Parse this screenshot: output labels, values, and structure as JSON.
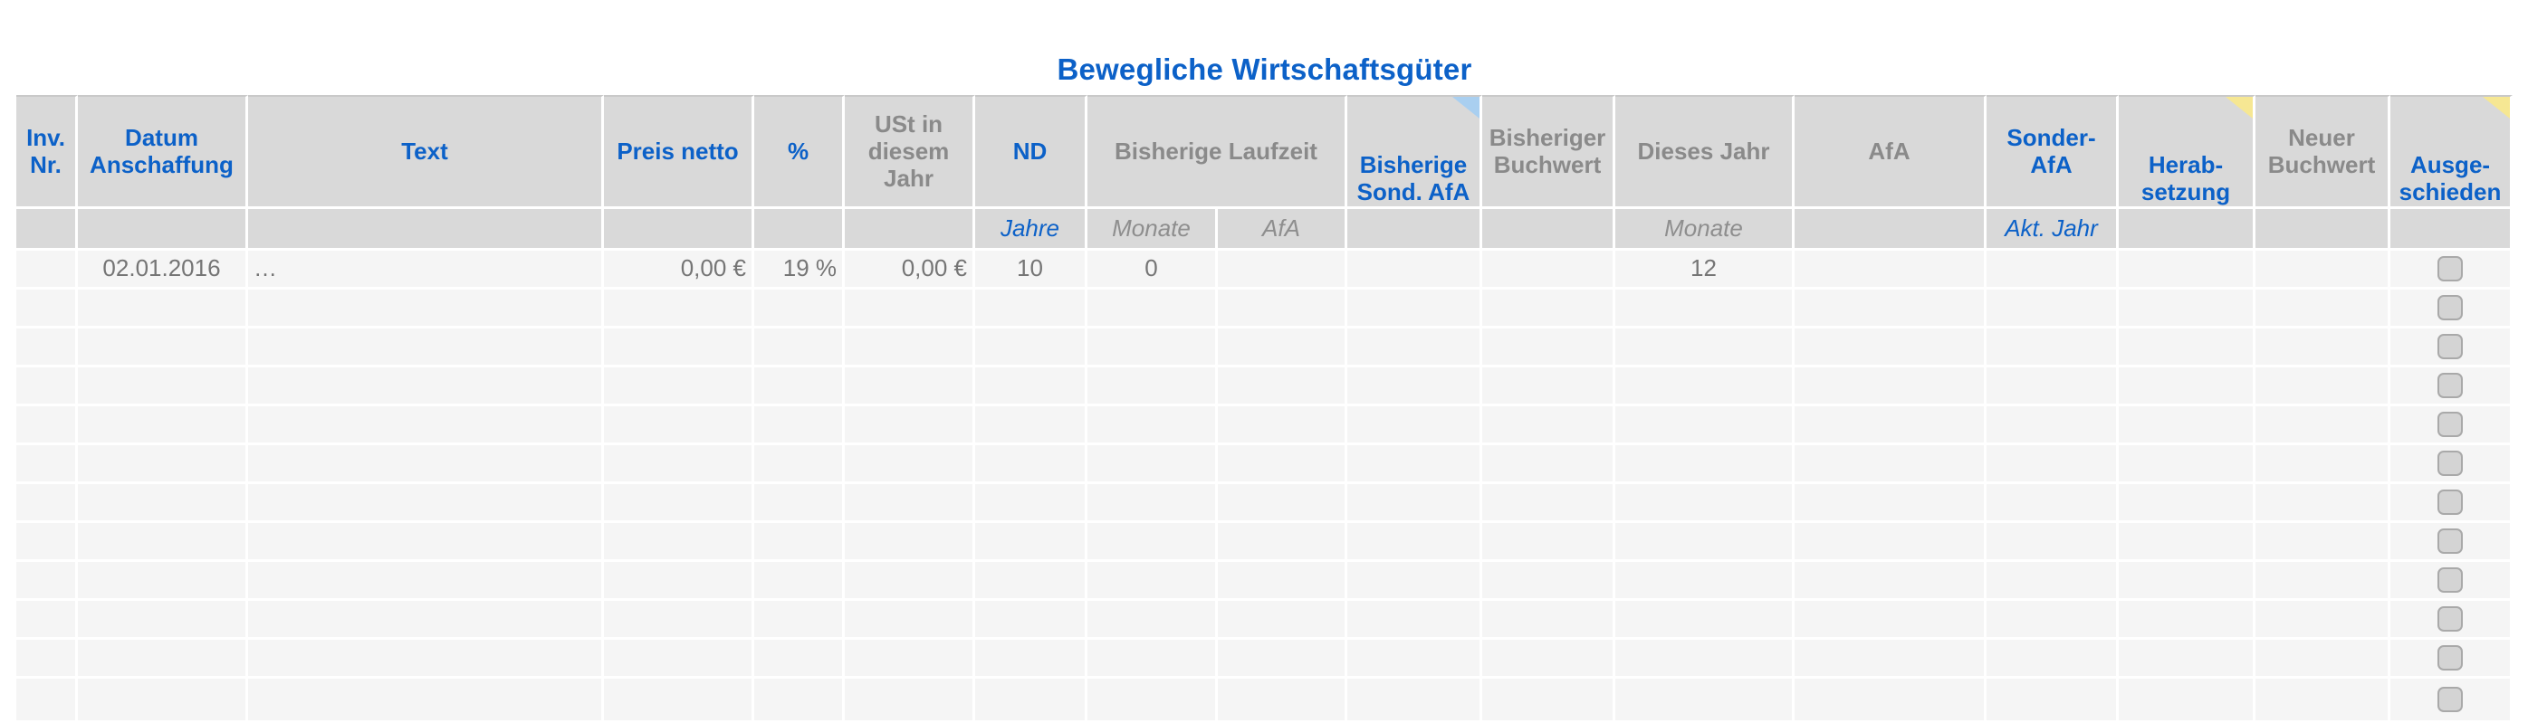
{
  "title": "Bewegliche Wirtschaftsgüter",
  "colors": {
    "accent_blue": "#0c61c8",
    "header_gray_text": "#8a8a8a",
    "header_background": "#d9d9d9",
    "row_background": "#f5f5f5",
    "gridline": "#ffffff",
    "data_text": "#757575",
    "comment_flag_blue": "#a9cff0",
    "comment_flag_yellow": "#f6e793",
    "checkbox_fill": "#d4d4d4",
    "checkbox_border": "#a9a9a9"
  },
  "table": {
    "columns": [
      {
        "id": "inv_nr",
        "label": "Inv.\nNr.",
        "color": "blue"
      },
      {
        "id": "datum",
        "label": "Datum\nAnschaffung",
        "color": "blue"
      },
      {
        "id": "text",
        "label": "Text",
        "color": "blue"
      },
      {
        "id": "preis_netto",
        "label": "Preis netto",
        "color": "blue"
      },
      {
        "id": "prozent",
        "label": "%",
        "color": "blue"
      },
      {
        "id": "ust",
        "label": "USt in\ndiesem\nJahr",
        "color": "gray"
      },
      {
        "id": "nd",
        "label": "ND",
        "color": "blue",
        "subheader": "Jahre",
        "subheader_color": "blue"
      },
      {
        "id": "bisherige_laufzeit",
        "label": "Bisherige Laufzeit",
        "color": "gray",
        "children": [
          {
            "id": "laufzeit_monate",
            "subheader": "Monate",
            "subheader_color": "gray"
          },
          {
            "id": "laufzeit_afa",
            "subheader": "AfA",
            "subheader_color": "gray"
          }
        ]
      },
      {
        "id": "bisherige_sond_afa",
        "label": "Bisherige\nSond. AfA",
        "color": "blue",
        "note_marker": "blue"
      },
      {
        "id": "bisheriger_buchwert",
        "label": "Bisheriger\nBuchwert",
        "color": "gray"
      },
      {
        "id": "dieses_jahr",
        "label": "Dieses Jahr",
        "color": "gray",
        "subheader": "Monate",
        "subheader_color": "gray"
      },
      {
        "id": "afa",
        "label": "AfA",
        "color": "gray"
      },
      {
        "id": "sonder_afa",
        "label": "Sonder-\nAfA",
        "color": "blue",
        "subheader": "Akt. Jahr",
        "subheader_color": "blue"
      },
      {
        "id": "herabsetzung",
        "label": "Herab-\nsetzung",
        "color": "blue",
        "note_marker": "yellow"
      },
      {
        "id": "neuer_buchwert",
        "label": "Neuer\nBuchwert",
        "color": "gray"
      },
      {
        "id": "ausgeschieden",
        "label": "Ausge-\nschieden",
        "color": "blue",
        "note_marker": "yellow"
      }
    ],
    "rows": [
      {
        "inv_nr": "",
        "datum": "02.01.2016",
        "text": "…",
        "preis_netto": "0,00 €",
        "prozent": "19 %",
        "ust": "0,00 €",
        "nd": "10",
        "laufzeit_monate": "0",
        "laufzeit_afa": "",
        "bisherige_sond_afa": "",
        "bisheriger_buchwert": "",
        "dieses_jahr": "12",
        "afa": "",
        "sonder_afa": "",
        "herabsetzung": "",
        "neuer_buchwert": "",
        "ausgeschieden_checked": false
      },
      {
        "inv_nr": "",
        "datum": "",
        "text": "",
        "preis_netto": "",
        "prozent": "",
        "ust": "",
        "nd": "",
        "laufzeit_monate": "",
        "laufzeit_afa": "",
        "bisherige_sond_afa": "",
        "bisheriger_buchwert": "",
        "dieses_jahr": "",
        "afa": "",
        "sonder_afa": "",
        "herabsetzung": "",
        "neuer_buchwert": "",
        "ausgeschieden_checked": false
      },
      {
        "inv_nr": "",
        "datum": "",
        "text": "",
        "preis_netto": "",
        "prozent": "",
        "ust": "",
        "nd": "",
        "laufzeit_monate": "",
        "laufzeit_afa": "",
        "bisherige_sond_afa": "",
        "bisheriger_buchwert": "",
        "dieses_jahr": "",
        "afa": "",
        "sonder_afa": "",
        "herabsetzung": "",
        "neuer_buchwert": "",
        "ausgeschieden_checked": false
      },
      {
        "inv_nr": "",
        "datum": "",
        "text": "",
        "preis_netto": "",
        "prozent": "",
        "ust": "",
        "nd": "",
        "laufzeit_monate": "",
        "laufzeit_afa": "",
        "bisherige_sond_afa": "",
        "bisheriger_buchwert": "",
        "dieses_jahr": "",
        "afa": "",
        "sonder_afa": "",
        "herabsetzung": "",
        "neuer_buchwert": "",
        "ausgeschieden_checked": false
      },
      {
        "inv_nr": "",
        "datum": "",
        "text": "",
        "preis_netto": "",
        "prozent": "",
        "ust": "",
        "nd": "",
        "laufzeit_monate": "",
        "laufzeit_afa": "",
        "bisherige_sond_afa": "",
        "bisheriger_buchwert": "",
        "dieses_jahr": "",
        "afa": "",
        "sonder_afa": "",
        "herabsetzung": "",
        "neuer_buchwert": "",
        "ausgeschieden_checked": false
      },
      {
        "inv_nr": "",
        "datum": "",
        "text": "",
        "preis_netto": "",
        "prozent": "",
        "ust": "",
        "nd": "",
        "laufzeit_monate": "",
        "laufzeit_afa": "",
        "bisherige_sond_afa": "",
        "bisheriger_buchwert": "",
        "dieses_jahr": "",
        "afa": "",
        "sonder_afa": "",
        "herabsetzung": "",
        "neuer_buchwert": "",
        "ausgeschieden_checked": false
      },
      {
        "inv_nr": "",
        "datum": "",
        "text": "",
        "preis_netto": "",
        "prozent": "",
        "ust": "",
        "nd": "",
        "laufzeit_monate": "",
        "laufzeit_afa": "",
        "bisherige_sond_afa": "",
        "bisheriger_buchwert": "",
        "dieses_jahr": "",
        "afa": "",
        "sonder_afa": "",
        "herabsetzung": "",
        "neuer_buchwert": "",
        "ausgeschieden_checked": false
      },
      {
        "inv_nr": "",
        "datum": "",
        "text": "",
        "preis_netto": "",
        "prozent": "",
        "ust": "",
        "nd": "",
        "laufzeit_monate": "",
        "laufzeit_afa": "",
        "bisherige_sond_afa": "",
        "bisheriger_buchwert": "",
        "dieses_jahr": "",
        "afa": "",
        "sonder_afa": "",
        "herabsetzung": "",
        "neuer_buchwert": "",
        "ausgeschieden_checked": false
      },
      {
        "inv_nr": "",
        "datum": "",
        "text": "",
        "preis_netto": "",
        "prozent": "",
        "ust": "",
        "nd": "",
        "laufzeit_monate": "",
        "laufzeit_afa": "",
        "bisherige_sond_afa": "",
        "bisheriger_buchwert": "",
        "dieses_jahr": "",
        "afa": "",
        "sonder_afa": "",
        "herabsetzung": "",
        "neuer_buchwert": "",
        "ausgeschieden_checked": false
      },
      {
        "inv_nr": "",
        "datum": "",
        "text": "",
        "preis_netto": "",
        "prozent": "",
        "ust": "",
        "nd": "",
        "laufzeit_monate": "",
        "laufzeit_afa": "",
        "bisherige_sond_afa": "",
        "bisheriger_buchwert": "",
        "dieses_jahr": "",
        "afa": "",
        "sonder_afa": "",
        "herabsetzung": "",
        "neuer_buchwert": "",
        "ausgeschieden_checked": false
      },
      {
        "inv_nr": "",
        "datum": "",
        "text": "",
        "preis_netto": "",
        "prozent": "",
        "ust": "",
        "nd": "",
        "laufzeit_monate": "",
        "laufzeit_afa": "",
        "bisherige_sond_afa": "",
        "bisheriger_buchwert": "",
        "dieses_jahr": "",
        "afa": "",
        "sonder_afa": "",
        "herabsetzung": "",
        "neuer_buchwert": "",
        "ausgeschieden_checked": false
      },
      {
        "inv_nr": "",
        "datum": "",
        "text": "",
        "preis_netto": "",
        "prozent": "",
        "ust": "",
        "nd": "",
        "laufzeit_monate": "",
        "laufzeit_afa": "",
        "bisherige_sond_afa": "",
        "bisheriger_buchwert": "",
        "dieses_jahr": "",
        "afa": "",
        "sonder_afa": "",
        "herabsetzung": "",
        "neuer_buchwert": "",
        "ausgeschieden_checked": false
      }
    ]
  }
}
